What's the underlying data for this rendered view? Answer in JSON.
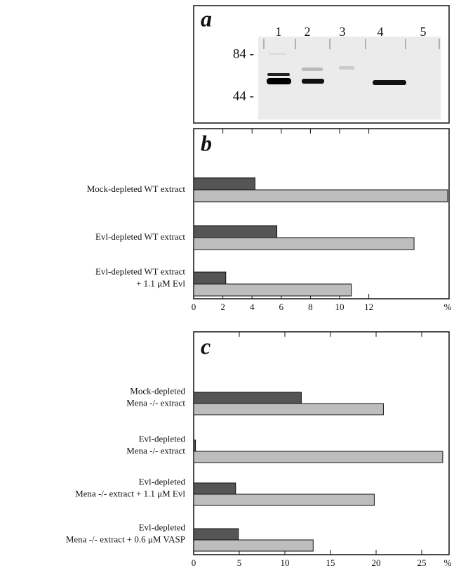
{
  "blot": {
    "panel_label": "a",
    "lanes": [
      "1",
      "2",
      "3",
      "4",
      "5"
    ],
    "markers": [
      "84 -",
      "44 -"
    ]
  },
  "chart_data": [
    {
      "type": "hbar",
      "panel_label": "b",
      "categories": [
        [
          "Mock-depleted WT extract"
        ],
        [
          "Evl-depleted WT extract"
        ],
        [
          "Evl-depleted WT extract",
          "+ 1.1 μM Evl"
        ]
      ],
      "series": [
        {
          "color": "#555555",
          "values": [
            4.2,
            5.7,
            2.2
          ]
        },
        {
          "color": "#bdbdbd",
          "values": [
            17.4,
            15.1,
            10.8
          ]
        }
      ],
      "xlim": [
        0,
        17.5
      ],
      "xticks": [
        0,
        2,
        4,
        6,
        8,
        10,
        12
      ],
      "x_unit_label": "%"
    },
    {
      "type": "hbar",
      "panel_label": "c",
      "categories": [
        [
          "Mock-depleted",
          "Mena -/- extract"
        ],
        [
          "Evl-depleted",
          "Mena -/- extract"
        ],
        [
          "Evl-depleted",
          "Mena -/- extract + 1.1 μM Evl"
        ],
        [
          "Evl-depleted",
          "Mena -/- extract + 0.6 μM VASP"
        ]
      ],
      "series": [
        {
          "color": "#555555",
          "values": [
            11.8,
            0.2,
            4.6,
            4.9
          ]
        },
        {
          "color": "#bdbdbd",
          "values": [
            20.8,
            27.3,
            19.8,
            13.1
          ]
        }
      ],
      "xlim": [
        0,
        28
      ],
      "xticks": [
        0,
        5,
        10,
        15,
        20,
        25
      ],
      "x_unit_label": "%"
    }
  ]
}
